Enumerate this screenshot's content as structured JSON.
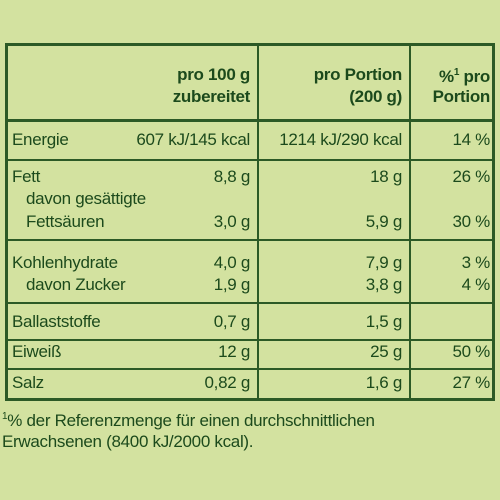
{
  "header": {
    "col1": [
      "pro 100 g",
      "zubereitet"
    ],
    "col2": [
      "pro Portion",
      "(200 g)"
    ],
    "col3": {
      "pre": "%",
      "sup": "1",
      "post": "pro",
      "line2": "Portion"
    }
  },
  "rows": [
    {
      "lines": [
        {
          "label": "Energie",
          "per100": "607 kJ/145 kcal",
          "portion": "1214 kJ/290 kcal",
          "percent": "14 %"
        }
      ]
    },
    {
      "lines": [
        {
          "label": "Fett",
          "per100": "8,8 g",
          "portion": "18 g",
          "percent": "26 %"
        },
        {
          "label": "davon gesättigte"
        },
        {
          "label": "Fettsäuren",
          "per100": "3,0 g",
          "portion": "5,9 g",
          "percent": "30 %"
        }
      ]
    },
    {
      "lines": [
        {
          "label": "Kohlenhydrate",
          "per100": "4,0 g",
          "portion": "7,9 g",
          "percent": "3 %"
        },
        {
          "label": "davon Zucker",
          "per100": "1,9 g",
          "portion": "3,8 g",
          "percent": "4 %"
        }
      ]
    },
    {
      "lines": [
        {
          "label": "Ballaststoffe",
          "per100": "0,7 g",
          "portion": "1,5 g"
        }
      ]
    },
    {
      "lines": [
        {
          "label": "Eiweiß",
          "per100": "12 g",
          "portion": "25 g",
          "percent": "50 %"
        }
      ]
    },
    {
      "lines": [
        {
          "label": "Salz",
          "per100": "0,82 g",
          "portion": "1,6 g",
          "percent": "27 %"
        }
      ]
    }
  ],
  "footnote": {
    "sup": "1",
    "text": "% der Referenzmenge für einen durchschnittlichen",
    "line2": "Erwachsenen (8400 kJ/2000 kcal)."
  }
}
